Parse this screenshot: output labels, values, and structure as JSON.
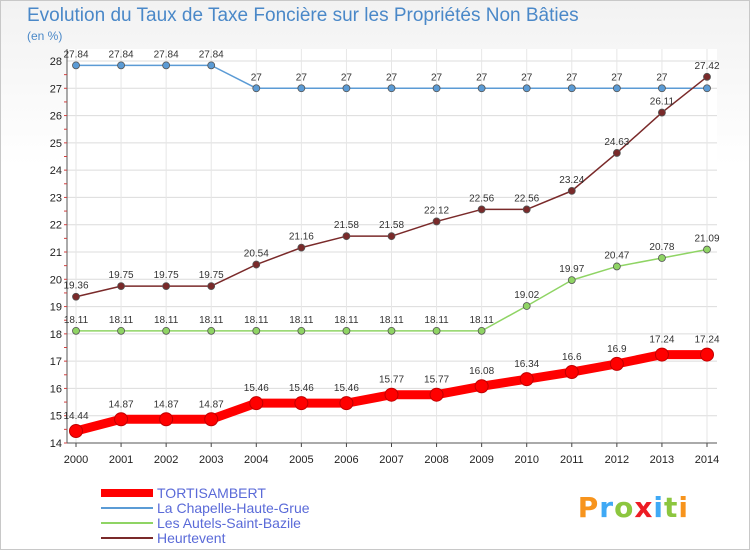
{
  "header": {
    "title": "Evolution du Taux de Taxe Foncière sur les Propriétés Non Bâties",
    "unit": "(en %)"
  },
  "logo": {
    "text": "Proxiti",
    "colors": [
      "#f7941d",
      "#3fa9f5",
      "#8cc63f",
      "#ed1c24",
      "#3fa9f5",
      "#8cc63f",
      "#f7941d"
    ]
  },
  "chart_data": {
    "type": "line",
    "title": "Evolution du Taux de Taxe Foncière sur les Propriétés Non Bâties",
    "ylabel": "(en %)",
    "xlabel": "",
    "x": [
      "2000",
      "2001",
      "2002",
      "2003",
      "2004",
      "2005",
      "2006",
      "2007",
      "2008",
      "2009",
      "2010",
      "2011",
      "2012",
      "2013",
      "2014"
    ],
    "ylim": [
      14,
      28
    ],
    "yticks": [
      "14",
      "15",
      "16",
      "17",
      "18",
      "19",
      "20",
      "21",
      "22",
      "23",
      "24",
      "25",
      "26",
      "27",
      "28"
    ],
    "legend_position": "bottom-left",
    "series": [
      {
        "name": "TORTISAMBERT",
        "color": "#ff0000",
        "thick": true,
        "values": [
          14.44,
          14.87,
          14.87,
          14.87,
          15.46,
          15.46,
          15.46,
          15.77,
          15.77,
          16.08,
          16.34,
          16.6,
          16.9,
          17.24,
          17.24
        ],
        "labels": [
          "14.44",
          "14.87",
          "14.87",
          "14.87",
          "15.46",
          "15.46",
          "15.46",
          "15.77",
          "15.77",
          "16.08",
          "16.34",
          "16.6",
          "16.9",
          "17.24",
          "17.24"
        ]
      },
      {
        "name": "La Chapelle-Haute-Grue",
        "color": "#5b9bd5",
        "thick": false,
        "values": [
          27.84,
          27.84,
          27.84,
          27.84,
          27,
          27,
          27,
          27,
          27,
          27,
          27,
          27,
          27,
          27,
          27
        ],
        "labels": [
          "27.84",
          "27.84",
          "27.84",
          "27.84",
          "27",
          "27",
          "27",
          "27",
          "27",
          "27",
          "27",
          "27",
          "27",
          "27",
          ""
        ]
      },
      {
        "name": "Les Autels-Saint-Bazile",
        "color": "#8fd464",
        "thick": false,
        "values": [
          18.11,
          18.11,
          18.11,
          18.11,
          18.11,
          18.11,
          18.11,
          18.11,
          18.11,
          18.11,
          19.02,
          19.97,
          20.47,
          20.78,
          21.09
        ],
        "labels": [
          "18.11",
          "18.11",
          "18.11",
          "18.11",
          "18.11",
          "18.11",
          "18.11",
          "18.11",
          "18.11",
          "18.11",
          "19.02",
          "19.97",
          "20.47",
          "20.78",
          "21.09"
        ]
      },
      {
        "name": "Heurtevent",
        "color": "#7a2a2a",
        "thick": false,
        "values": [
          19.36,
          19.75,
          19.75,
          19.75,
          20.54,
          21.16,
          21.58,
          21.58,
          22.12,
          22.56,
          22.56,
          23.24,
          24.63,
          26.11,
          27.42
        ],
        "labels": [
          "19.36",
          "19.75",
          "19.75",
          "19.75",
          "20.54",
          "21.16",
          "21.58",
          "21.58",
          "22.12",
          "22.56",
          "22.56",
          "23.24",
          "24.63",
          "26.11",
          "27.42"
        ]
      }
    ]
  }
}
